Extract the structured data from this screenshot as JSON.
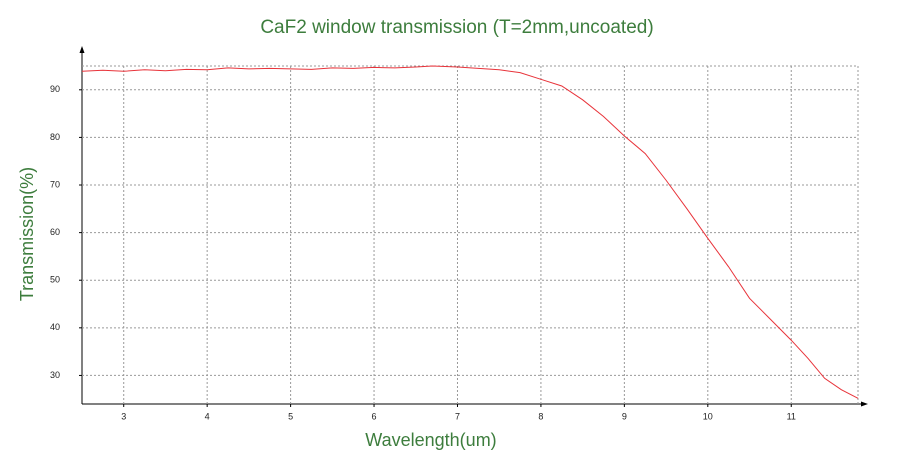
{
  "chart_data": {
    "type": "line",
    "title": "CaF2 window transmission (T=2mm,uncoated)",
    "x_label": "Wavelength(um)",
    "y_label": "Transmission(%)",
    "x": [
      2.5,
      2.75,
      3,
      3.25,
      3.5,
      3.75,
      4,
      4.25,
      4.5,
      4.75,
      5,
      5.25,
      5.5,
      5.75,
      6,
      6.25,
      6.5,
      6.7,
      7,
      7.25,
      7.5,
      7.75,
      8,
      8.25,
      8.5,
      8.75,
      9,
      9.25,
      9.5,
      9.75,
      10,
      10.25,
      10.5,
      10.75,
      11,
      11.2,
      11.4,
      11.6,
      11.8
    ],
    "series": [
      {
        "name": "Transmission",
        "color": "#e8333a",
        "values": [
          93.9,
          94.1,
          93.9,
          94.2,
          94.0,
          94.3,
          94.2,
          94.6,
          94.4,
          94.5,
          94.4,
          94.3,
          94.6,
          94.5,
          94.7,
          94.6,
          94.8,
          95.0,
          94.8,
          94.5,
          94.2,
          93.6,
          92.2,
          90.8,
          87.9,
          84.4,
          80.3,
          76.6,
          71.0,
          65.0,
          58.8,
          52.8,
          46.2,
          41.8,
          37.4,
          33.6,
          29.4,
          27.0,
          25.2
        ]
      }
    ],
    "xlim": [
      2.5,
      11.8
    ],
    "xticks": [
      3,
      4,
      5,
      6,
      7,
      8,
      9,
      10,
      11
    ],
    "ylim": [
      24,
      95
    ],
    "yticks": [
      30,
      40,
      50,
      60,
      70,
      80,
      90
    ],
    "grid": true
  }
}
